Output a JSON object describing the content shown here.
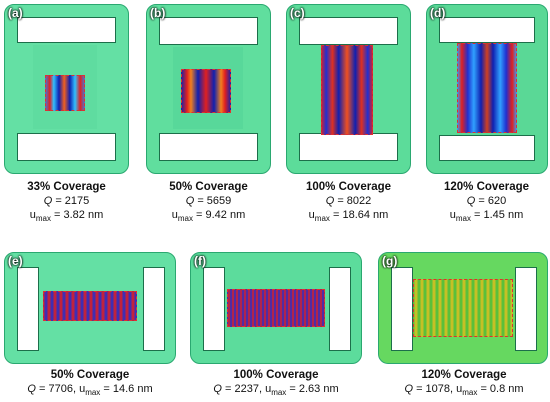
{
  "panels_top": [
    {
      "letter": "(a)",
      "title": "33% Coverage",
      "q_label": "Q",
      "q_value": "= 2175",
      "u_value": "= 3.82 nm"
    },
    {
      "letter": "(b)",
      "title": "50% Coverage",
      "q_label": "Q",
      "q_value": "= 5659",
      "u_value": "= 9.42 nm"
    },
    {
      "letter": "(c)",
      "title": "100% Coverage",
      "q_label": "Q",
      "q_value": "= 8022",
      "u_value": "= 18.64 nm"
    },
    {
      "letter": "(d)",
      "title": "120% Coverage",
      "q_label": "Q",
      "q_value": "= 620",
      "u_value": "= 1.45 nm"
    }
  ],
  "panels_bottom": [
    {
      "letter": "(e)",
      "title": "50% Coverage",
      "q_label": "Q",
      "line2": "= 7706, u",
      "u_value": "= 14.6 nm"
    },
    {
      "letter": "(f)",
      "title": "100% Coverage",
      "q_label": "Q",
      "line2": "= 2237, u",
      "u_value": "= 2.63 nm"
    },
    {
      "letter": "(g)",
      "title": "120% Coverage",
      "q_label": "Q",
      "line2": "= 1078, u",
      "u_value": "= 0.8 nm"
    }
  ],
  "u_base": "u",
  "u_sub": "max",
  "colors": {
    "frame": "#5ee0a0",
    "frame_dark": "#3fcf86",
    "plate_blue": "#1b2fd0",
    "plate_red": "#e02020",
    "dash": "#e03030"
  }
}
